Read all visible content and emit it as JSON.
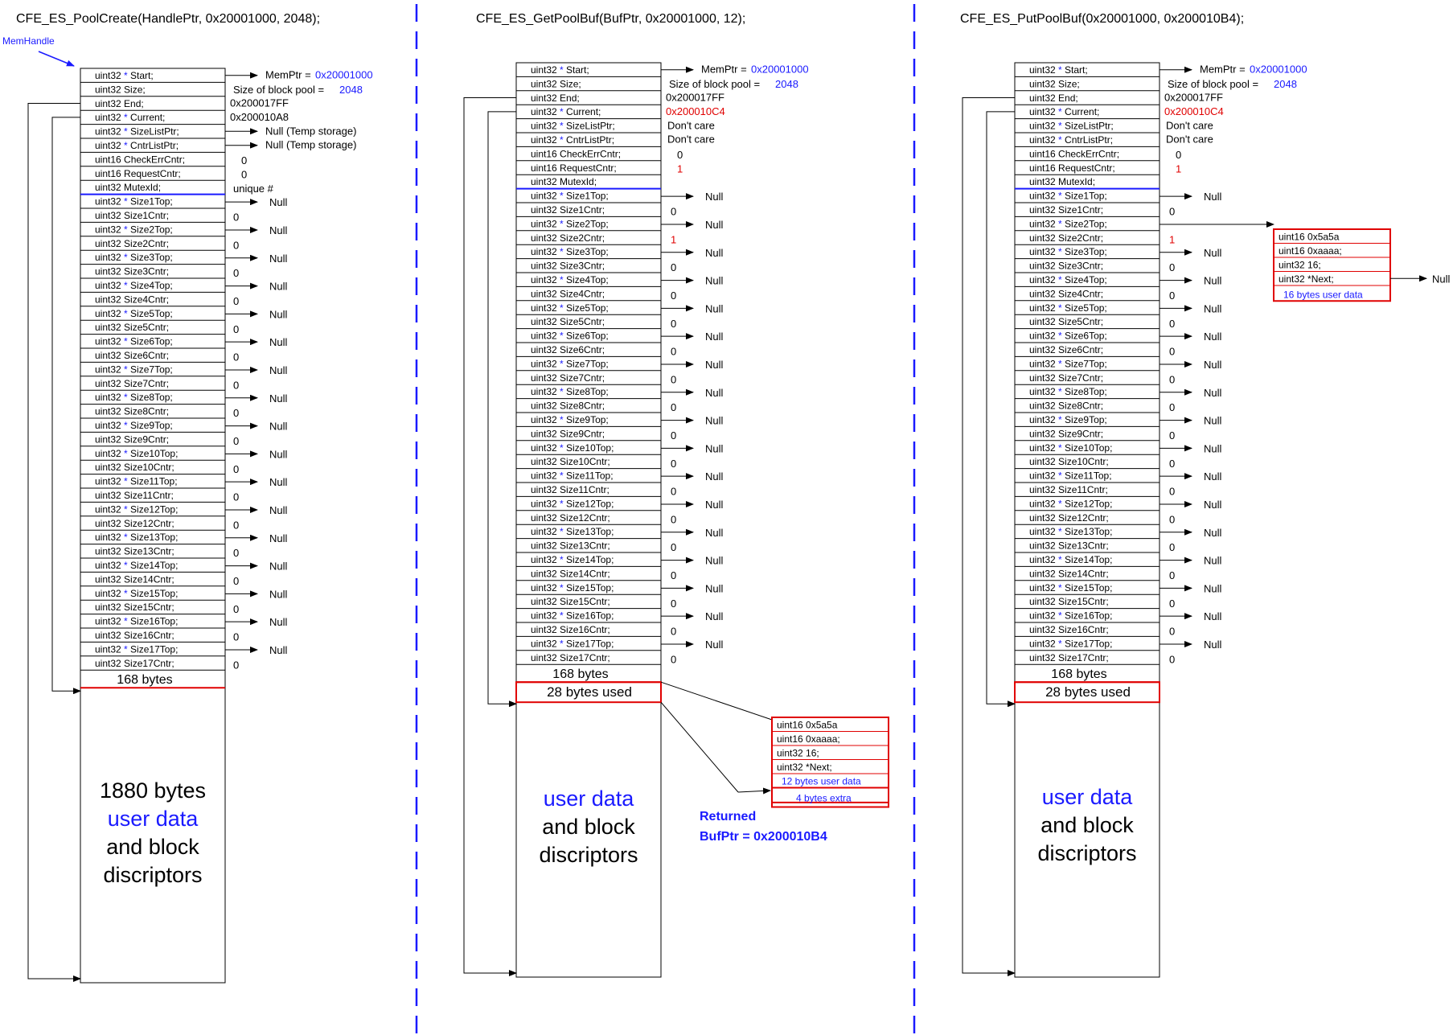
{
  "handle_label": "MemHandle",
  "panels": [
    {
      "id": "create",
      "title": "CFE_ES_PoolCreate(HandlePtr, 0x20001000, 2048);",
      "header_bytes": "168 bytes",
      "free_lines": [
        "1880 bytes",
        "user data",
        "and block",
        "discriptors"
      ],
      "used_label": "",
      "fields": {
        "start": "MemPtr = ",
        "start_val": "0x20001000",
        "size": "Size of block pool = ",
        "size_val": "2048",
        "end": "0x200017FF",
        "current": "0x200010A8",
        "sizelist": "Null  (Temp storage)",
        "cntrlist": "Null  (Temp storage)",
        "checkerr": "0",
        "request": "0",
        "mutex": "unique #"
      },
      "cntr_values": [
        "0",
        "0",
        "0",
        "0",
        "0",
        "0",
        "0",
        "0",
        "0",
        "0",
        "0",
        "0",
        "0",
        "0",
        "0",
        "0",
        "0"
      ],
      "top_values": [
        "Null",
        "Null",
        "Null",
        "Null",
        "Null",
        "Null",
        "Null",
        "Null",
        "Null",
        "Null",
        "Null",
        "Null",
        "Null",
        "Null",
        "Null",
        "Null",
        "Null"
      ]
    },
    {
      "id": "get",
      "title": "CFE_ES_GetPoolBuf(BufPtr, 0x20001000, 12);",
      "header_bytes": "168 bytes",
      "free_lines": [
        "user data",
        "and block",
        "discriptors"
      ],
      "used_label": "28 bytes used",
      "fields": {
        "start": "MemPtr = ",
        "start_val": "0x20001000",
        "size": "Size of block pool = ",
        "size_val": "2048",
        "end": "0x200017FF",
        "current": "0x200010C4",
        "sizelist": "Don't care",
        "cntrlist": "Don't care",
        "checkerr": "0",
        "request": "1",
        "mutex": ""
      },
      "cntr_values": [
        "0",
        "1",
        "0",
        "0",
        "0",
        "0",
        "0",
        "0",
        "0",
        "0",
        "0",
        "0",
        "0",
        "0",
        "0",
        "0",
        "0"
      ],
      "top_values": [
        "Null",
        "Null",
        "Null",
        "Null",
        "Null",
        "Null",
        "Null",
        "Null",
        "Null",
        "Null",
        "Null",
        "Null",
        "Null",
        "Null",
        "Null",
        "Null",
        "Null"
      ],
      "returned": [
        "Returned",
        "BufPtr = 0x200010B4"
      ]
    },
    {
      "id": "put",
      "title": "CFE_ES_PutPoolBuf(0x20001000, 0x200010B4);",
      "header_bytes": "168 bytes",
      "free_lines": [
        "user data",
        "and block",
        "discriptors"
      ],
      "used_label": "28 bytes used",
      "fields": {
        "start": "MemPtr = ",
        "start_val": "0x20001000",
        "size": "Size of block pool = ",
        "size_val": "2048",
        "end": "0x200017FF",
        "current": "0x200010C4",
        "sizelist": "Don't care",
        "cntrlist": "Don't care",
        "checkerr": "0",
        "request": "1",
        "mutex": ""
      },
      "cntr_values": [
        "0",
        "1",
        "0",
        "0",
        "0",
        "0",
        "0",
        "0",
        "0",
        "0",
        "0",
        "0",
        "0",
        "0",
        "0",
        "0",
        "0"
      ],
      "top_values": [
        "Null",
        "",
        "Null",
        "Null",
        "Null",
        "Null",
        "Null",
        "Null",
        "Null",
        "Null",
        "Null",
        "Null",
        "Null",
        "Null",
        "Null",
        "Null",
        "Null"
      ],
      "free_list_null": "Null"
    }
  ],
  "struct_labels": {
    "start": [
      "uint32",
      "*",
      "Start;"
    ],
    "size": [
      "uint32",
      "",
      "Size;"
    ],
    "end": [
      "uint32",
      "",
      "End;"
    ],
    "current": [
      "uint32",
      "*",
      "Current;"
    ],
    "sizelist": [
      "uint32",
      "*",
      "SizeListPtr;"
    ],
    "cntrlist": [
      "uint32",
      "*",
      "CntrListPtr;"
    ],
    "checkerr": [
      "uint16",
      "",
      "CheckErrCntr;"
    ],
    "request": [
      "uint16",
      "",
      "RequestCntr;"
    ],
    "mutex": [
      "uint32",
      "",
      "MutexId;"
    ]
  },
  "block_descriptor": {
    "lines": [
      "uint16   0x5a5a",
      "uint16   0xaaaa;",
      "uint32   16;",
      "uint32   *Next;"
    ],
    "user_data_get": "12 bytes user data",
    "extra_get": "4 bytes extra",
    "user_data_put": "16 bytes user data"
  },
  "colors": {
    "blue": "#1a1aff",
    "red": "#e00000",
    "dash": "#1a1aff"
  }
}
